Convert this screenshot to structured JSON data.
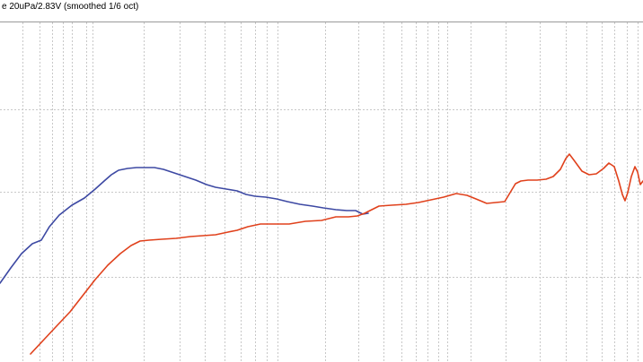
{
  "chart_data": {
    "type": "line",
    "title": "e 20uPa/2.83V (smoothed 1/6 oct)",
    "xlabel": "",
    "ylabel": "",
    "x_scale": "log",
    "grid": true,
    "colors": {
      "blue_series": "#3d49a3",
      "red_series": "#e0411c",
      "grid": "#c8c8c8",
      "frame": "#9a9a9a"
    },
    "series": [
      {
        "color": "#3d49a3",
        "points": [
          [
            0,
            316
          ],
          [
            12,
            299
          ],
          [
            24,
            283
          ],
          [
            36,
            272
          ],
          [
            46,
            268
          ],
          [
            55,
            253
          ],
          [
            66,
            240
          ],
          [
            80,
            229
          ],
          [
            94,
            221
          ],
          [
            106,
            211
          ],
          [
            116,
            202
          ],
          [
            124,
            195
          ],
          [
            132,
            190
          ],
          [
            142,
            188
          ],
          [
            152,
            187
          ],
          [
            162,
            187
          ],
          [
            172,
            187
          ],
          [
            182,
            189
          ],
          [
            194,
            193
          ],
          [
            206,
            197
          ],
          [
            218,
            201
          ],
          [
            230,
            206
          ],
          [
            240,
            209
          ],
          [
            252,
            211
          ],
          [
            264,
            213
          ],
          [
            274,
            217
          ],
          [
            284,
            219
          ],
          [
            296,
            220
          ],
          [
            308,
            222
          ],
          [
            320,
            225
          ],
          [
            334,
            228
          ],
          [
            348,
            230
          ],
          [
            360,
            232
          ],
          [
            374,
            234
          ],
          [
            386,
            235
          ],
          [
            396,
            235
          ],
          [
            404,
            239
          ],
          [
            410,
            238
          ]
        ]
      },
      {
        "color": "#e0411c",
        "points": [
          [
            34,
            395
          ],
          [
            48,
            380
          ],
          [
            62,
            365
          ],
          [
            78,
            348
          ],
          [
            92,
            330
          ],
          [
            106,
            312
          ],
          [
            120,
            296
          ],
          [
            134,
            283
          ],
          [
            146,
            274
          ],
          [
            156,
            269
          ],
          [
            166,
            268
          ],
          [
            180,
            267
          ],
          [
            196,
            266
          ],
          [
            212,
            264
          ],
          [
            226,
            263
          ],
          [
            240,
            262
          ],
          [
            254,
            259
          ],
          [
            264,
            257
          ],
          [
            276,
            253
          ],
          [
            290,
            250
          ],
          [
            306,
            250
          ],
          [
            322,
            250
          ],
          [
            340,
            247
          ],
          [
            358,
            246
          ],
          [
            374,
            242
          ],
          [
            388,
            242
          ],
          [
            398,
            241
          ],
          [
            406,
            238
          ],
          [
            414,
            234
          ],
          [
            422,
            230
          ],
          [
            436,
            229
          ],
          [
            452,
            228
          ],
          [
            466,
            226
          ],
          [
            480,
            223
          ],
          [
            494,
            220
          ],
          [
            508,
            216
          ],
          [
            520,
            218
          ],
          [
            530,
            222
          ],
          [
            542,
            227
          ],
          [
            552,
            226
          ],
          [
            562,
            225
          ],
          [
            568,
            215
          ],
          [
            574,
            205
          ],
          [
            580,
            202
          ],
          [
            588,
            201
          ],
          [
            598,
            201
          ],
          [
            608,
            200
          ],
          [
            616,
            197
          ],
          [
            624,
            189
          ],
          [
            630,
            177
          ],
          [
            634,
            172
          ],
          [
            640,
            180
          ],
          [
            648,
            191
          ],
          [
            656,
            195
          ],
          [
            664,
            194
          ],
          [
            672,
            188
          ],
          [
            678,
            182
          ],
          [
            684,
            186
          ],
          [
            689,
            202
          ],
          [
            693,
            217
          ],
          [
            696,
            224
          ],
          [
            699,
            215
          ],
          [
            703,
            197
          ],
          [
            707,
            186
          ],
          [
            710,
            192
          ],
          [
            713,
            206
          ],
          [
            716,
            202
          ]
        ]
      }
    ]
  }
}
